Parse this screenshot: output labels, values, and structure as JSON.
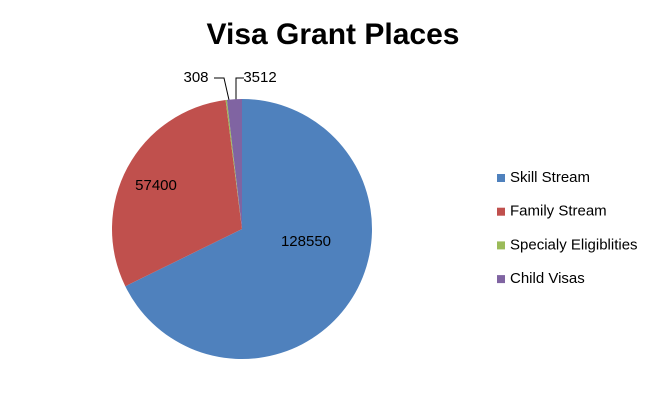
{
  "chart_data": {
    "type": "pie",
    "title": "Visa Grant Places",
    "categories": [
      "Skill Stream",
      "Family Stream",
      "Specialy Eligiblities",
      "Child Visas"
    ],
    "values": [
      128550,
      57400,
      308,
      3512
    ],
    "colors": [
      "#4f81bd",
      "#c0504d",
      "#9bbb59",
      "#8064a2"
    ],
    "legend": "right"
  }
}
